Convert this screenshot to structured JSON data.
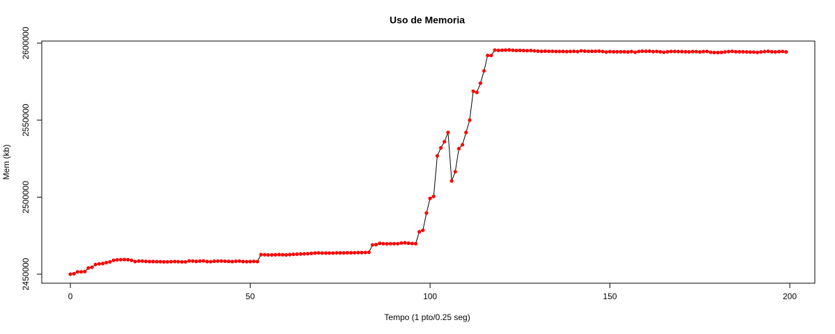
{
  "chart_data": {
    "type": "line",
    "title": "Uso de Memoria",
    "x_label": "Tempo (1 pto/0.25 seg)",
    "y_label": "Mem (kb)",
    "x": [
      0,
      1,
      2,
      3,
      4,
      5,
      6,
      7,
      8,
      9,
      10,
      11,
      12,
      13,
      14,
      15,
      16,
      17,
      18,
      19,
      20,
      21,
      22,
      23,
      24,
      25,
      26,
      27,
      28,
      29,
      30,
      31,
      32,
      33,
      34,
      35,
      36,
      37,
      38,
      39,
      40,
      41,
      42,
      43,
      44,
      45,
      46,
      47,
      48,
      49,
      50,
      51,
      52,
      53,
      54,
      55,
      56,
      57,
      58,
      59,
      60,
      61,
      62,
      63,
      64,
      65,
      66,
      67,
      68,
      69,
      70,
      71,
      72,
      73,
      74,
      75,
      76,
      77,
      78,
      79,
      80,
      81,
      82,
      83,
      84,
      85,
      86,
      87,
      88,
      89,
      90,
      91,
      92,
      93,
      94,
      95,
      96,
      97,
      98,
      99,
      100,
      101,
      102,
      103,
      104,
      105,
      106,
      107,
      108,
      109,
      110,
      111,
      112,
      113,
      114,
      115,
      116,
      117,
      118,
      119,
      120,
      121,
      122,
      123,
      124,
      125,
      126,
      127,
      128,
      129,
      130,
      131,
      132,
      133,
      134,
      135,
      136,
      137,
      138,
      139,
      140,
      141,
      142,
      143,
      144,
      145,
      146,
      147,
      148,
      149,
      150,
      151,
      152,
      153,
      154,
      155,
      156,
      157,
      158,
      159,
      160,
      161,
      162,
      163,
      164,
      165,
      166,
      167,
      168,
      169,
      170,
      171,
      172,
      173,
      174,
      175,
      176,
      177,
      178,
      179,
      180,
      181,
      182,
      183,
      184,
      185,
      186,
      187,
      188,
      189,
      190,
      191,
      192,
      193,
      194,
      195,
      196,
      197,
      198,
      199
    ],
    "series": [
      {
        "line_color": "#000000",
        "color": "#ff0000",
        "values": [
          2450000,
          2450300,
          2451500,
          2451500,
          2451700,
          2454000,
          2454500,
          2456300,
          2456700,
          2456900,
          2457500,
          2458000,
          2459000,
          2459300,
          2459400,
          2459500,
          2459400,
          2459000,
          2458200,
          2458500,
          2458500,
          2458300,
          2458200,
          2458200,
          2458100,
          2458100,
          2458000,
          2458000,
          2458100,
          2458200,
          2458100,
          2458000,
          2458000,
          2458600,
          2458500,
          2458300,
          2458500,
          2458600,
          2458200,
          2458100,
          2458400,
          2458500,
          2458500,
          2458400,
          2458300,
          2458200,
          2458400,
          2458500,
          2458200,
          2458100,
          2458200,
          2458300,
          2458200,
          2462700,
          2462600,
          2462500,
          2462500,
          2462600,
          2462700,
          2462600,
          2462500,
          2462700,
          2462900,
          2463000,
          2463100,
          2463200,
          2463300,
          2463500,
          2463700,
          2463800,
          2463700,
          2463700,
          2463700,
          2463700,
          2463800,
          2463800,
          2463800,
          2463900,
          2463900,
          2463900,
          2464000,
          2464000,
          2464100,
          2464200,
          2469000,
          2469200,
          2470000,
          2469800,
          2469700,
          2469800,
          2469800,
          2469800,
          2470200,
          2470400,
          2470100,
          2469900,
          2469800,
          2477500,
          2478500,
          2489700,
          2499200,
          2500500,
          2526800,
          2532000,
          2536000,
          2542000,
          2510500,
          2516500,
          2531500,
          2534000,
          2542000,
          2550000,
          2568800,
          2568000,
          2574000,
          2582000,
          2592000,
          2592000,
          2595500,
          2595300,
          2595400,
          2595500,
          2595600,
          2595400,
          2595200,
          2595300,
          2595200,
          2595100,
          2595200,
          2595000,
          2594800,
          2594700,
          2594800,
          2594700,
          2594700,
          2594600,
          2594600,
          2594600,
          2594500,
          2594600,
          2594700,
          2594500,
          2595000,
          2594800,
          2594700,
          2594700,
          2594700,
          2594800,
          2594600,
          2594200,
          2594500,
          2594400,
          2594400,
          2594400,
          2594400,
          2594300,
          2594500,
          2594100,
          2594600,
          2594800,
          2594700,
          2594800,
          2594500,
          2594600,
          2594400,
          2594100,
          2594400,
          2594600,
          2594600,
          2594500,
          2594500,
          2594400,
          2594300,
          2594500,
          2594500,
          2594300,
          2594500,
          2594600,
          2594100,
          2593900,
          2593900,
          2594000,
          2594300,
          2594500,
          2594700,
          2594400,
          2594400,
          2594400,
          2594300,
          2594200,
          2594200,
          2594000,
          2594300,
          2594500,
          2594700,
          2594400,
          2594300,
          2594500,
          2594600,
          2594300
        ]
      }
    ],
    "xlim": [
      -7.96,
      206.96
    ],
    "xticks": [
      0,
      50,
      100,
      150,
      200
    ],
    "ylim": [
      2444130,
      2601350
    ],
    "yticks": [
      2450000,
      2500000,
      2550000,
      2600000
    ]
  }
}
